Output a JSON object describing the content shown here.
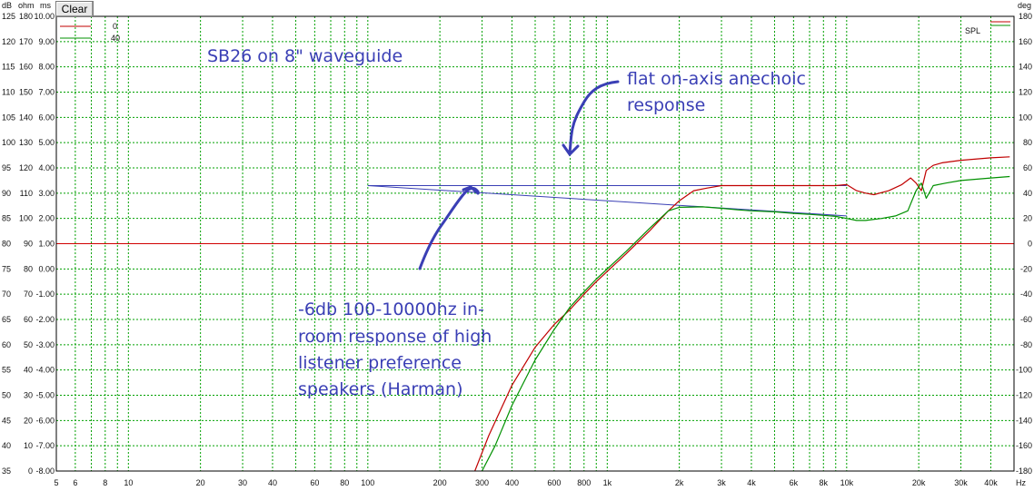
{
  "toolbar": {
    "clear_label": "Clear"
  },
  "axis_headers": {
    "db": "dB",
    "ohm": "ohm",
    "ms": "ms",
    "deg": "deg",
    "hz": "Hz"
  },
  "legend": {
    "spl": "SPL",
    "series0": "0",
    "series1": "40"
  },
  "annotations": {
    "title": "SB26 on 8\" waveguide",
    "flat_line1": "flat on-axis anechoic",
    "flat_line2": "response",
    "harman_line1": "-6db 100-10000hz in-",
    "harman_line2": "room response of high",
    "harman_line3": "listener preference",
    "harman_line4": "speakers (Harman)"
  },
  "colors": {
    "grid": "#00a000",
    "series0": "#c00000",
    "series1": "#009000",
    "annotation": "#3a3fb5",
    "zero_line": "#d00000",
    "reference_line": "#3a3fb5"
  },
  "chart_data": {
    "type": "line",
    "title": "",
    "xlabel": "Hz",
    "x_scale": "log",
    "xlim": [
      5,
      50000
    ],
    "x_ticks": [
      {
        "v": 5,
        "label": "5"
      },
      {
        "v": 6,
        "label": "6"
      },
      {
        "v": 8,
        "label": "8"
      },
      {
        "v": 10,
        "label": "10"
      },
      {
        "v": 20,
        "label": "20"
      },
      {
        "v": 30,
        "label": "30"
      },
      {
        "v": 40,
        "label": "40"
      },
      {
        "v": 60,
        "label": "60"
      },
      {
        "v": 80,
        "label": "80"
      },
      {
        "v": 100,
        "label": "100"
      },
      {
        "v": 200,
        "label": "200"
      },
      {
        "v": 300,
        "label": "300"
      },
      {
        "v": 400,
        "label": "400"
      },
      {
        "v": 600,
        "label": "600"
      },
      {
        "v": 800,
        "label": "800"
      },
      {
        "v": 1000,
        "label": "1k"
      },
      {
        "v": 2000,
        "label": "2k"
      },
      {
        "v": 3000,
        "label": "3k"
      },
      {
        "v": 4000,
        "label": "4k"
      },
      {
        "v": 6000,
        "label": "6k"
      },
      {
        "v": 8000,
        "label": "8k"
      },
      {
        "v": 10000,
        "label": "10k"
      },
      {
        "v": 20000,
        "label": "20k"
      },
      {
        "v": 30000,
        "label": "30k"
      },
      {
        "v": 40000,
        "label": "40k"
      }
    ],
    "ylabel": "dB",
    "ylim": [
      35,
      125
    ],
    "y_ticks_db": [
      125,
      120,
      115,
      110,
      105,
      100,
      95,
      90,
      85,
      80,
      75,
      70,
      65,
      60,
      55,
      50,
      45,
      40,
      35
    ],
    "y_ticks_ohm": [
      180,
      170,
      160,
      150,
      140,
      130,
      120,
      110,
      100,
      90,
      80,
      70,
      60,
      50,
      40,
      30,
      20,
      10,
      0
    ],
    "y_ticks_ms": [
      "10.00",
      "9.00",
      "8.00",
      "7.00",
      "6.00",
      "5.00",
      "4.00",
      "3.00",
      "2.00",
      "1.00",
      "0.00",
      "-1.00",
      "-2.00",
      "-3.00",
      "-4.00",
      "-5.00",
      "-6.00",
      "-7.00",
      "-8.00",
      "-9.00"
    ],
    "y_ticks_deg": [
      180,
      160,
      140,
      120,
      100,
      80,
      60,
      40,
      20,
      0,
      -20,
      -40,
      -60,
      -80,
      -100,
      -120,
      -140,
      -160,
      -180
    ],
    "zero_line_db": 80,
    "grid": true,
    "legend_position": "top-left",
    "series": [
      {
        "name": "0",
        "color": "#c00000",
        "x": [
          280,
          320,
          400,
          500,
          600,
          700,
          800,
          900,
          1000,
          1200,
          1500,
          1800,
          2000,
          2300,
          2600,
          3000,
          3500,
          4000,
          5000,
          6000,
          7000,
          8000,
          9000,
          10000,
          11000,
          12000,
          13000,
          15000,
          17000,
          18500,
          19500,
          20500,
          21500,
          23000,
          25000,
          30000,
          40000,
          48000
        ],
        "y": [
          35,
          42,
          52,
          59.5,
          64,
          67,
          70,
          72.5,
          74.5,
          78,
          82.5,
          86.5,
          88.5,
          90.5,
          91,
          91.5,
          91.5,
          91.5,
          91.5,
          91.5,
          91.5,
          91.5,
          91.5,
          91.7,
          90.5,
          90,
          89.7,
          90.5,
          91.7,
          93,
          92,
          90.5,
          94.5,
          95.5,
          96,
          96.5,
          97,
          97.2
        ]
      },
      {
        "name": "40",
        "color": "#009000",
        "x": [
          300,
          340,
          400,
          500,
          600,
          700,
          800,
          900,
          1000,
          1200,
          1500,
          1800,
          2000,
          2500,
          3000,
          3500,
          4000,
          5000,
          6000,
          7000,
          8000,
          9000,
          10000,
          11000,
          12000,
          14000,
          16000,
          18000,
          19500,
          20500,
          21500,
          23000,
          26000,
          30000,
          40000,
          48000
        ],
        "y": [
          35,
          40,
          48,
          57,
          63,
          67.5,
          70.5,
          73,
          75,
          78.5,
          83,
          86.5,
          87.2,
          87.3,
          87,
          86.7,
          86.5,
          86.3,
          86,
          85.8,
          85.6,
          85.4,
          85,
          84.6,
          84.6,
          85,
          85.5,
          86.5,
          90.5,
          92,
          89,
          91.5,
          92,
          92.5,
          93,
          93.3
        ]
      },
      {
        "name": "Harman target",
        "color": "#3a3fb5",
        "x": [
          100,
          10000
        ],
        "y": [
          91.5,
          85.5
        ]
      },
      {
        "name": "Flat anechoic",
        "color": "#3a3fb5",
        "x": [
          100,
          10000
        ],
        "y": [
          91.5,
          91.5
        ]
      }
    ]
  }
}
